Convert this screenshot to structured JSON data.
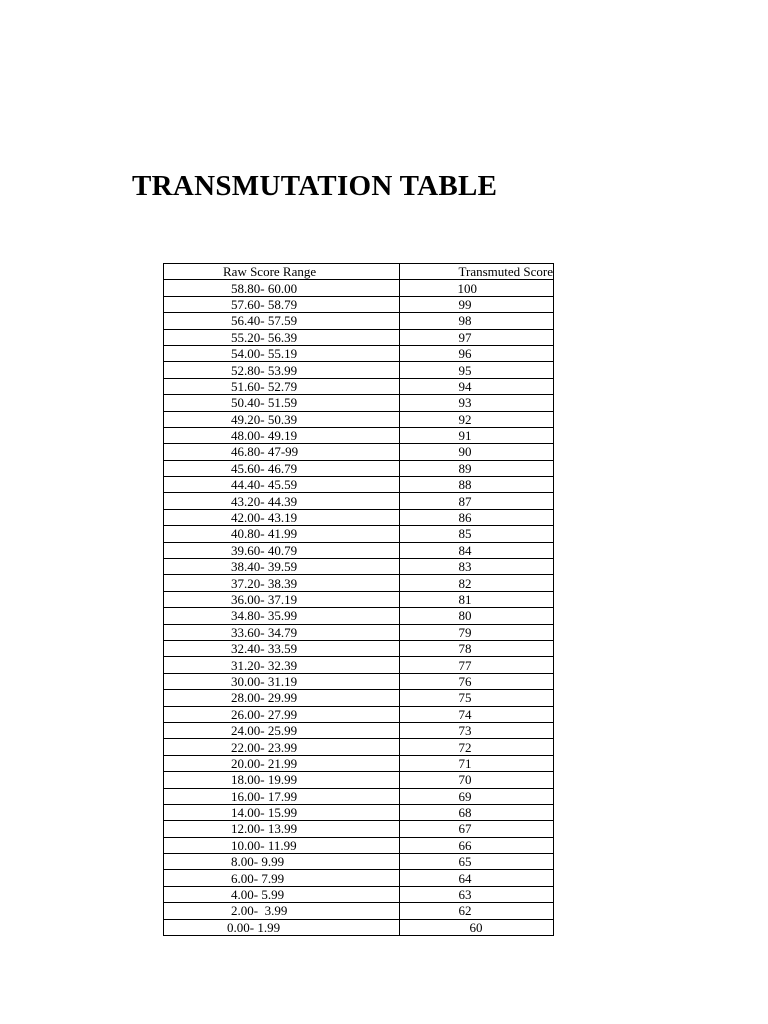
{
  "title": "TRANSMUTATION TABLE",
  "table": {
    "headers": [
      "Raw Score Range",
      "Transmuted Score"
    ],
    "rows": [
      [
        "58.80- 60.00",
        "100"
      ],
      [
        "57.60- 58.79",
        "99"
      ],
      [
        "56.40- 57.59",
        "98"
      ],
      [
        "55.20- 56.39",
        "97"
      ],
      [
        "54.00- 55.19",
        "96"
      ],
      [
        "52.80- 53.99",
        "95"
      ],
      [
        "51.60- 52.79",
        "94"
      ],
      [
        "50.40- 51.59",
        "93"
      ],
      [
        "49.20- 50.39",
        "92"
      ],
      [
        "48.00- 49.19",
        "91"
      ],
      [
        "46.80- 47-99",
        "90"
      ],
      [
        "45.60- 46.79",
        "89"
      ],
      [
        "44.40- 45.59",
        "88"
      ],
      [
        "43.20- 44.39",
        "87"
      ],
      [
        "42.00- 43.19",
        "86"
      ],
      [
        "40.80- 41.99",
        "85"
      ],
      [
        "39.60- 40.79",
        "84"
      ],
      [
        "38.40- 39.59",
        "83"
      ],
      [
        "37.20- 38.39",
        "82"
      ],
      [
        "36.00- 37.19",
        "81"
      ],
      [
        "34.80- 35.99",
        "80"
      ],
      [
        "33.60- 34.79",
        "79"
      ],
      [
        "32.40- 33.59",
        "78"
      ],
      [
        "31.20- 32.39",
        "77"
      ],
      [
        "30.00- 31.19",
        "76"
      ],
      [
        "28.00- 29.99",
        "75"
      ],
      [
        "26.00- 27.99",
        "74"
      ],
      [
        "24.00- 25.99",
        "73"
      ],
      [
        "22.00- 23.99",
        "72"
      ],
      [
        "20.00- 21.99",
        "71"
      ],
      [
        "18.00- 19.99",
        "70"
      ],
      [
        "16.00- 17.99",
        "69"
      ],
      [
        "14.00- 15.99",
        "68"
      ],
      [
        "12.00- 13.99",
        "67"
      ],
      [
        "10.00- 11.99",
        "66"
      ],
      [
        "8.00- 9.99",
        "65"
      ],
      [
        "6.00- 7.99",
        "64"
      ],
      [
        "4.00- 5.99",
        "63"
      ],
      [
        "2.00-  3.99",
        "62"
      ],
      [
        "0.00- 1.99",
        "60"
      ]
    ]
  }
}
